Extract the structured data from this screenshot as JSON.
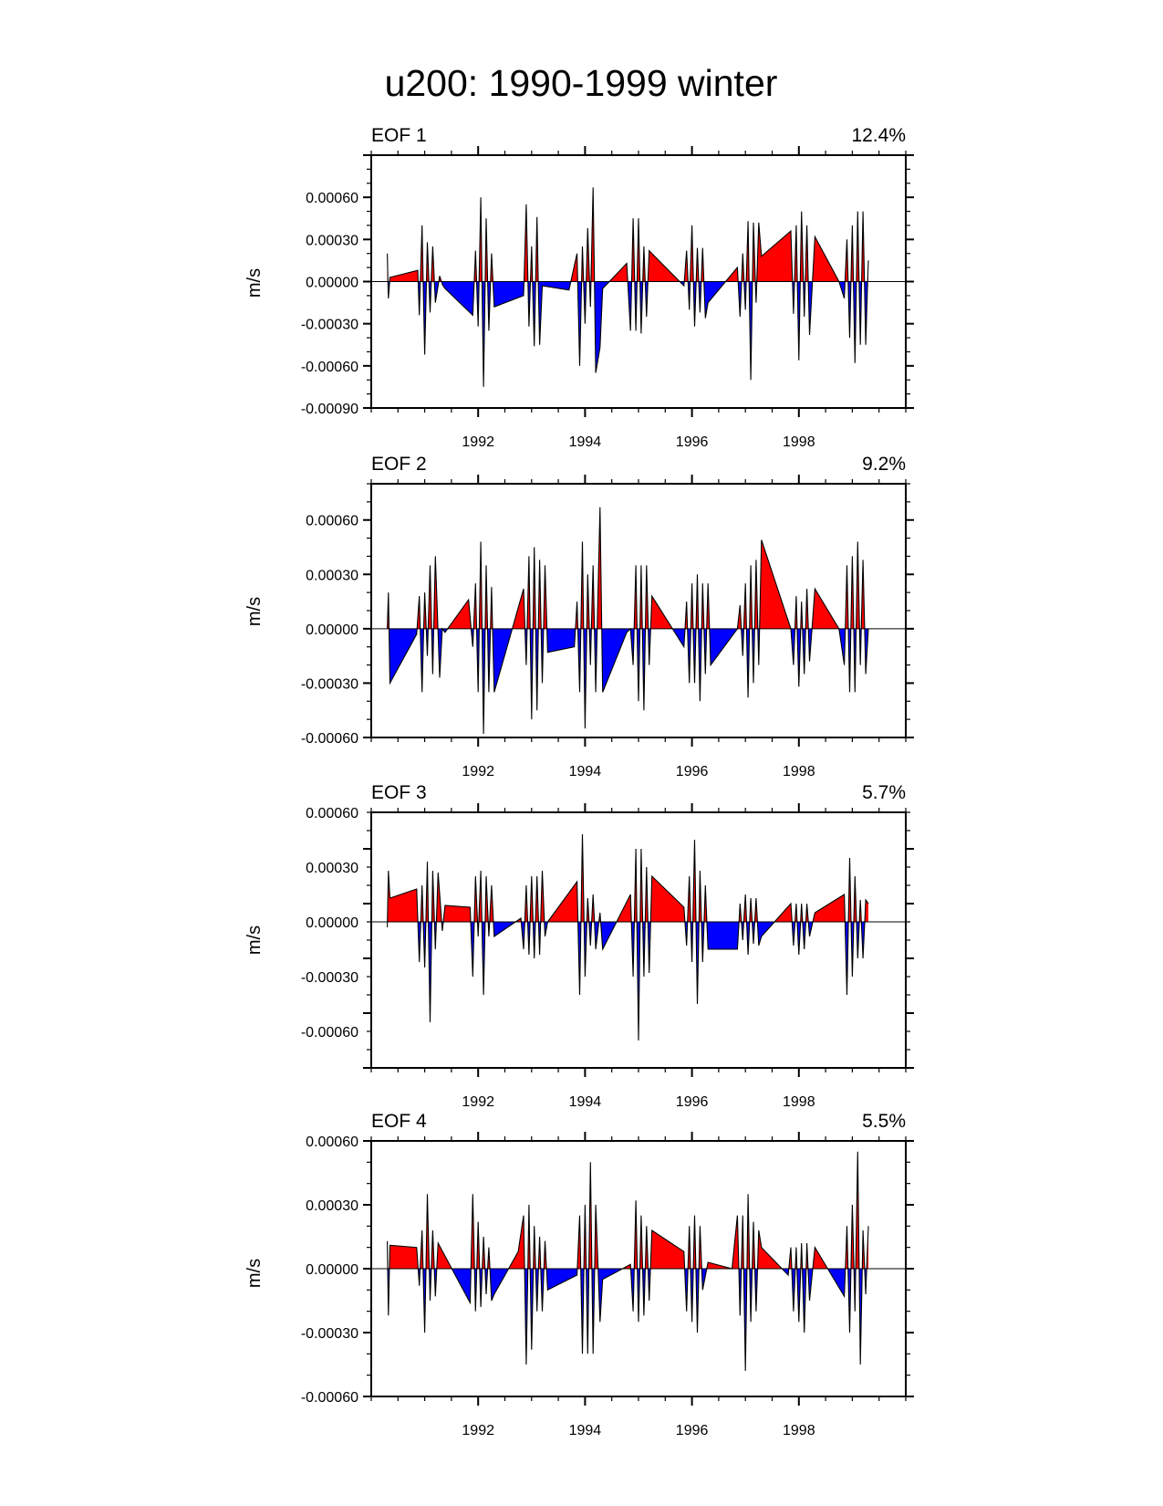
{
  "chart_data": {
    "title": "u200: 1990-1999 winter",
    "type": "area",
    "fill_colors": {
      "positive": "#ff0000",
      "negative": "#0000ff",
      "line": "#000000"
    },
    "x_range": [
      1990,
      2000
    ],
    "x_ticks": [
      "1992",
      "1994",
      "1996",
      "1998"
    ],
    "panels": [
      {
        "label": "EOF 1",
        "variance": "12.4%",
        "ylabel": "m/s",
        "ylim": [
          -0.0009,
          0.0009
        ],
        "y_ticks": [
          "0.00060",
          "0.00030",
          "0.00000",
          "-0.00030",
          "-0.00060",
          "-0.00090"
        ],
        "series": {
          "x": [
            1990.3,
            1990.32,
            1990.35,
            1990.87,
            1990.9,
            1990.95,
            1991.0,
            1991.05,
            1991.1,
            1991.15,
            1991.2,
            1991.28,
            1991.33,
            1991.38,
            1991.9,
            1991.95,
            1992.0,
            1992.05,
            1992.1,
            1992.15,
            1992.2,
            1992.25,
            1992.3,
            1992.85,
            1992.9,
            1992.95,
            1993.0,
            1993.05,
            1993.1,
            1993.15,
            1993.2,
            1993.7,
            1993.85,
            1993.9,
            1993.95,
            1994.0,
            1994.05,
            1994.1,
            1994.15,
            1994.2,
            1994.28,
            1994.33,
            1994.78,
            1994.85,
            1994.9,
            1994.95,
            1995.0,
            1995.05,
            1995.1,
            1995.15,
            1995.2,
            1995.25,
            1995.85,
            1995.9,
            1995.95,
            1996.0,
            1996.05,
            1996.1,
            1996.15,
            1996.2,
            1996.25,
            1996.3,
            1996.85,
            1996.9,
            1996.95,
            1997.0,
            1997.05,
            1997.1,
            1997.15,
            1997.2,
            1997.25,
            1997.3,
            1997.85,
            1997.9,
            1997.95,
            1998.0,
            1998.05,
            1998.1,
            1998.15,
            1998.2,
            1998.3,
            1998.75,
            1998.85,
            1998.9,
            1998.95,
            1999.0,
            1999.05,
            1999.1,
            1999.15,
            1999.2,
            1999.25,
            1999.3
          ],
          "values": [
            0.0002,
            -0.00012,
            3e-05,
            8e-05,
            -0.00024,
            0.0004,
            -0.00052,
            0.00028,
            -0.00022,
            0.00025,
            -0.00015,
            4e-05,
            -2e-05,
            -5e-05,
            -0.00024,
            0.00022,
            -0.00032,
            0.0006,
            -0.00075,
            0.00045,
            -0.00035,
            0.0002,
            -0.00018,
            -0.0001,
            0.00055,
            -0.00032,
            0.00025,
            -0.00046,
            0.00046,
            -0.00045,
            -3e-05,
            -6e-05,
            0.0002,
            -0.0006,
            0.00025,
            -0.0003,
            0.00038,
            -0.00018,
            0.00067,
            -0.00065,
            -0.00047,
            -5e-05,
            0.00013,
            -0.00035,
            0.00045,
            -0.00035,
            0.00045,
            -0.00037,
            0.00025,
            -0.00025,
            0.00022,
            0.0002,
            -3e-05,
            0.00022,
            -0.0002,
            0.0004,
            -0.00032,
            0.00024,
            -0.00022,
            0.00024,
            -0.00026,
            -0.00015,
            0.0001,
            -0.00025,
            0.0002,
            -0.0002,
            0.00043,
            -0.0007,
            0.00042,
            -0.00015,
            0.00042,
            0.00018,
            0.00036,
            -0.00023,
            0.0004,
            -0.00056,
            0.0005,
            -0.00025,
            0.0004,
            -0.00038,
            0.00032,
            0.0,
            -0.00012,
            0.0003,
            -0.0004,
            0.0004,
            -0.00058,
            0.0005,
            -0.00045,
            0.0005,
            -0.00045,
            0.00015
          ]
        }
      },
      {
        "label": "EOF 2",
        "variance": "9.2%",
        "ylabel": "m/s",
        "ylim": [
          -0.0006,
          0.0008
        ],
        "y_ticks": [
          "0.00060",
          "0.00030",
          "0.00000",
          "-0.00030",
          "-0.00060"
        ],
        "series": {
          "x": [
            1990.3,
            1990.32,
            1990.35,
            1990.85,
            1990.9,
            1990.95,
            1991.0,
            1991.05,
            1991.1,
            1991.15,
            1991.2,
            1991.28,
            1991.33,
            1991.38,
            1991.82,
            1991.9,
            1991.95,
            1992.0,
            1992.05,
            1992.1,
            1992.15,
            1992.2,
            1992.25,
            1992.3,
            1992.85,
            1992.9,
            1992.95,
            1993.0,
            1993.05,
            1993.1,
            1993.15,
            1993.2,
            1993.25,
            1993.3,
            1993.8,
            1993.85,
            1993.9,
            1993.95,
            1994.0,
            1994.05,
            1994.1,
            1994.15,
            1994.2,
            1994.28,
            1994.33,
            1994.78,
            1994.85,
            1994.9,
            1994.95,
            1995.0,
            1995.05,
            1995.1,
            1995.15,
            1995.2,
            1995.25,
            1995.85,
            1995.9,
            1995.95,
            1996.0,
            1996.05,
            1996.1,
            1996.15,
            1996.2,
            1996.25,
            1996.3,
            1996.35,
            1996.85,
            1996.9,
            1996.95,
            1997.0,
            1997.05,
            1997.1,
            1997.15,
            1997.2,
            1997.25,
            1997.3,
            1997.85,
            1997.9,
            1997.95,
            1998.0,
            1998.05,
            1998.1,
            1998.15,
            1998.2,
            1998.3,
            1998.75,
            1998.85,
            1998.9,
            1998.95,
            1999.0,
            1999.05,
            1999.1,
            1999.15,
            1999.2,
            1999.25,
            1999.3
          ],
          "values": [
            0.0,
            0.0002,
            -0.0003,
            -3e-05,
            0.00018,
            -0.00035,
            0.0002,
            -0.00015,
            0.00035,
            -0.00025,
            0.0004,
            -0.00027,
            0.0,
            -2e-05,
            0.00016,
            -0.0001,
            0.00025,
            -0.00035,
            0.00048,
            -0.00058,
            0.00035,
            -0.00035,
            0.00023,
            -0.00035,
            0.00022,
            -0.0002,
            0.0004,
            -0.0005,
            0.00045,
            -0.00045,
            0.00038,
            -0.0003,
            0.00035,
            -0.00013,
            -0.0001,
            0.00015,
            -0.00035,
            0.00048,
            -0.00055,
            0.0003,
            -0.0002,
            0.00035,
            -0.00035,
            0.00067,
            -0.00035,
            -2e-05,
            0.0,
            -0.0002,
            0.00035,
            -0.0004,
            0.00035,
            -0.00045,
            0.00035,
            -0.0002,
            0.00018,
            -0.0001,
            0.00015,
            -0.0003,
            0.00025,
            -0.0003,
            0.0003,
            -0.0004,
            0.00025,
            -0.00025,
            0.00025,
            -0.0002,
            0.0,
            0.00013,
            -0.00015,
            0.00025,
            -0.00038,
            0.00035,
            -0.0003,
            0.00038,
            -0.0002,
            0.00049,
            0.0,
            -0.0002,
            0.00018,
            -0.00032,
            0.00015,
            -0.00025,
            0.00022,
            -0.00018,
            0.00022,
            0.0,
            -0.0002,
            0.00035,
            -0.00035,
            0.0004,
            -0.00035,
            0.00048,
            -0.0002,
            0.00038,
            -0.00025,
            0.0
          ]
        }
      },
      {
        "label": "EOF 3",
        "variance": "5.7%",
        "ylabel": "m/s",
        "ylim": [
          -0.0008,
          0.0006
        ],
        "y_ticks": [
          "0.00060",
          "0.00030",
          "0.00000",
          "-0.00030",
          "-0.00060"
        ],
        "series": {
          "x": [
            1990.3,
            1990.32,
            1990.35,
            1990.85,
            1990.9,
            1990.95,
            1991.0,
            1991.05,
            1991.1,
            1991.15,
            1991.2,
            1991.25,
            1991.33,
            1991.38,
            1991.85,
            1991.9,
            1991.95,
            1992.0,
            1992.05,
            1992.1,
            1992.15,
            1992.2,
            1992.25,
            1992.3,
            1992.8,
            1992.85,
            1992.9,
            1992.95,
            1993.0,
            1993.05,
            1993.1,
            1993.15,
            1993.2,
            1993.25,
            1993.3,
            1993.85,
            1993.9,
            1993.95,
            1994.0,
            1994.05,
            1994.1,
            1994.15,
            1994.2,
            1994.28,
            1994.33,
            1994.85,
            1994.9,
            1994.95,
            1995.0,
            1995.05,
            1995.1,
            1995.15,
            1995.2,
            1995.25,
            1995.85,
            1995.9,
            1995.95,
            1996.0,
            1996.05,
            1996.1,
            1996.15,
            1996.2,
            1996.25,
            1996.3,
            1996.85,
            1996.9,
            1996.95,
            1997.0,
            1997.05,
            1997.1,
            1997.15,
            1997.2,
            1997.25,
            1997.3,
            1997.85,
            1997.9,
            1997.95,
            1998.0,
            1998.05,
            1998.1,
            1998.15,
            1998.2,
            1998.3,
            1998.85,
            1998.9,
            1998.95,
            1999.0,
            1999.05,
            1999.1,
            1999.15,
            1999.2,
            1999.25,
            1999.3
          ],
          "values": [
            -3e-05,
            0.00028,
            0.00013,
            0.00018,
            -0.00022,
            0.0002,
            -0.00025,
            0.00033,
            -0.00055,
            0.00028,
            -0.00015,
            0.00027,
            -5e-05,
            9e-05,
            8e-05,
            -0.0003,
            0.00025,
            -8e-05,
            0.00028,
            -0.0004,
            0.00025,
            -8e-05,
            0.0002,
            -8e-05,
            2e-05,
            -0.00015,
            0.0002,
            -0.00018,
            0.00025,
            -0.0002,
            0.00025,
            -0.00018,
            0.00028,
            -8e-05,
            0.0,
            0.00022,
            -0.0004,
            0.00048,
            -0.0003,
            0.00013,
            -0.00013,
            0.00015,
            -0.00015,
            5e-05,
            -0.00015,
            0.00015,
            -0.0003,
            0.0004,
            -0.00065,
            0.0004,
            -0.0003,
            0.0003,
            -0.00028,
            0.00025,
            8e-05,
            -0.00013,
            0.00025,
            -0.00022,
            0.00045,
            -0.00045,
            0.00028,
            -0.00022,
            0.0002,
            -0.00015,
            -0.00015,
            0.0001,
            -0.0001,
            0.00015,
            -0.00018,
            0.00013,
            -0.00012,
            0.00013,
            -0.00013,
            -8e-05,
            0.0001,
            -0.00013,
            0.0001,
            -0.00018,
            0.0001,
            -0.00015,
            0.0001,
            -8e-05,
            5e-05,
            0.00015,
            -0.0004,
            0.00035,
            -0.0003,
            0.00025,
            -0.0002,
            0.00012,
            -0.0002,
            0.00012,
            0.0001
          ]
        }
      },
      {
        "label": "EOF 4",
        "variance": "5.5%",
        "ylabel": "m/s",
        "ylim": [
          -0.0006,
          0.0006
        ],
        "y_ticks": [
          "0.00060",
          "0.00030",
          "0.00000",
          "-0.00030",
          "-0.00060"
        ],
        "series": {
          "x": [
            1990.3,
            1990.32,
            1990.35,
            1990.85,
            1990.9,
            1990.95,
            1991.0,
            1991.05,
            1991.1,
            1991.15,
            1991.2,
            1991.25,
            1991.85,
            1991.9,
            1991.95,
            1992.0,
            1992.05,
            1992.1,
            1992.15,
            1992.2,
            1992.25,
            1992.3,
            1992.75,
            1992.85,
            1992.9,
            1992.95,
            1993.0,
            1993.05,
            1993.1,
            1993.15,
            1993.2,
            1993.25,
            1993.3,
            1993.85,
            1993.9,
            1993.95,
            1994.0,
            1994.05,
            1994.1,
            1994.15,
            1994.2,
            1994.28,
            1994.33,
            1994.85,
            1994.9,
            1994.95,
            1995.0,
            1995.05,
            1995.1,
            1995.15,
            1995.2,
            1995.25,
            1995.85,
            1995.9,
            1995.95,
            1996.0,
            1996.05,
            1996.1,
            1996.15,
            1996.2,
            1996.3,
            1996.75,
            1996.85,
            1996.9,
            1996.95,
            1997.0,
            1997.05,
            1997.1,
            1997.15,
            1997.2,
            1997.25,
            1997.3,
            1997.8,
            1997.85,
            1997.9,
            1997.95,
            1998.0,
            1998.05,
            1998.1,
            1998.15,
            1998.2,
            1998.3,
            1998.85,
            1998.9,
            1998.95,
            1999.0,
            1999.05,
            1999.1,
            1999.15,
            1999.2,
            1999.25,
            1999.3
          ],
          "values": [
            0.00013,
            -0.00022,
            0.00011,
            0.0001,
            -8e-05,
            0.00018,
            -0.0003,
            0.00035,
            -0.00015,
            0.00018,
            -0.00013,
            0.00012,
            -0.00016,
            0.00035,
            -0.0002,
            0.00022,
            -0.00018,
            0.00015,
            -0.00012,
            0.0001,
            -0.00015,
            -0.00012,
            8e-05,
            0.00025,
            -0.00045,
            0.0003,
            -0.00038,
            0.0002,
            -0.0002,
            0.00015,
            -0.0002,
            0.00013,
            -0.0001,
            -3e-05,
            0.00025,
            -0.0004,
            0.0003,
            -0.0004,
            0.0005,
            -0.0004,
            0.0003,
            -0.00025,
            -5e-05,
            2e-05,
            -0.0002,
            0.00032,
            -0.00025,
            0.00025,
            -0.00022,
            0.0002,
            -0.00015,
            0.00018,
            8e-05,
            -0.0002,
            0.0002,
            -0.00025,
            0.00025,
            -0.0003,
            0.0002,
            -0.0001,
            3e-05,
            0.0,
            0.00025,
            -0.00022,
            0.00025,
            -0.00048,
            0.00035,
            -0.00025,
            0.00022,
            -0.0002,
            0.00018,
            0.0001,
            -3e-05,
            0.0001,
            -0.0002,
            0.0001,
            -0.00025,
            0.00012,
            -0.0003,
            0.00012,
            -0.00015,
            0.0001,
            -0.00013,
            0.0002,
            -0.0003,
            0.0003,
            -0.0002,
            0.00055,
            -0.00045,
            0.00018,
            -0.00012,
            0.0002
          ]
        }
      }
    ]
  }
}
